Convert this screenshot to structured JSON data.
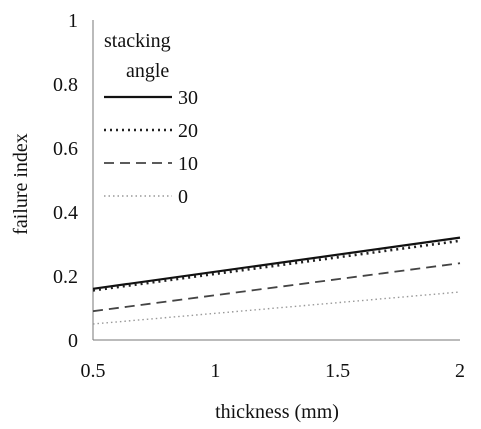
{
  "chart_data": {
    "type": "line",
    "title": "",
    "xlabel": "thickness (mm)",
    "ylabel": "failure index",
    "x_ticks": [
      "0.5",
      "1",
      "1.5",
      "2"
    ],
    "y_ticks": [
      "0",
      "0.2",
      "0.4",
      "0.6",
      "0.8",
      "1"
    ],
    "xlim": [
      0.5,
      2
    ],
    "ylim": [
      0,
      1
    ],
    "grid": false,
    "legend_title": [
      "stacking",
      "angle"
    ],
    "legend_position": "top-left",
    "x": [
      0.5,
      2
    ],
    "series": [
      {
        "name": "30",
        "values": [
          0.16,
          0.32
        ],
        "style": "solid",
        "color": "#111111"
      },
      {
        "name": "20",
        "values": [
          0.155,
          0.31
        ],
        "style": "dotted",
        "color": "#222222"
      },
      {
        "name": "10",
        "values": [
          0.09,
          0.24
        ],
        "style": "dashed",
        "color": "#444444"
      },
      {
        "name": "0",
        "values": [
          0.05,
          0.15
        ],
        "style": "dotted-fine",
        "color": "#999999"
      }
    ]
  }
}
